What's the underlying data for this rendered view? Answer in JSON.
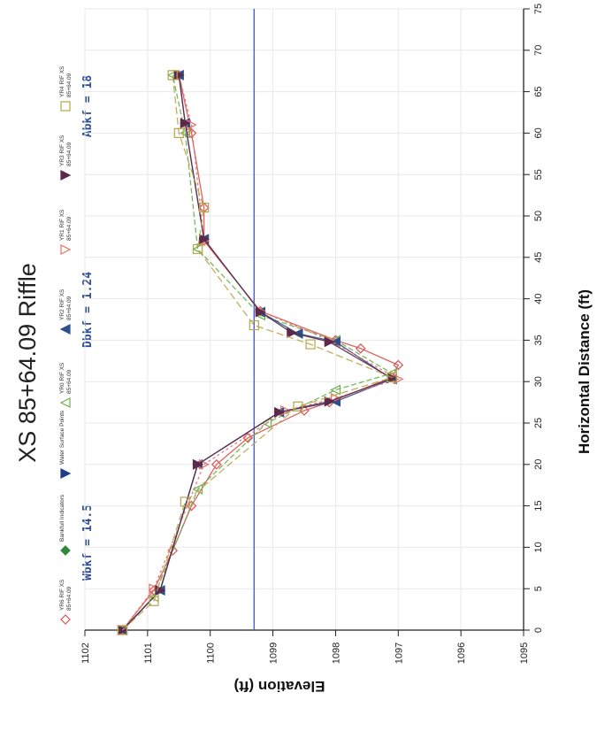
{
  "chart_data": {
    "type": "line",
    "title": "XS 85+64.09 Riffle",
    "xlabel": "Horizontal Distance (ft)",
    "ylabel": "Elevation (ft)",
    "xlim": [
      0,
      75
    ],
    "ylim": [
      1095,
      1102
    ],
    "x_ticks": [
      "0",
      "5",
      "10",
      "15",
      "20",
      "25",
      "30",
      "35",
      "40",
      "45",
      "50",
      "55",
      "60",
      "65",
      "70",
      "75"
    ],
    "y_ticks": [
      "1095",
      "1096",
      "1097",
      "1098",
      "1099",
      "1100",
      "1101",
      "1102"
    ],
    "orientation": "rotated-90-clockwise",
    "grid": true,
    "series": [
      {
        "name": "YR6 RIF XS 85+64.09",
        "color": "#d9534f",
        "marker": "diamond-open",
        "points": [
          [
            0,
            1101.4
          ],
          [
            4.8,
            1100.9
          ],
          [
            9.6,
            1100.6
          ],
          [
            15,
            1100.3
          ],
          [
            20,
            1099.9
          ],
          [
            23.2,
            1099.4
          ],
          [
            26.5,
            1098.5
          ],
          [
            27.5,
            1098.1
          ],
          [
            30.5,
            1097.1
          ],
          [
            32,
            1097.0
          ],
          [
            34,
            1097.6
          ],
          [
            35,
            1098.0
          ],
          [
            38.5,
            1099.2
          ],
          [
            47,
            1100.1
          ],
          [
            51,
            1100.1
          ],
          [
            60,
            1100.3
          ],
          [
            67,
            1100.5
          ]
        ]
      },
      {
        "name": "Bankfull Indicators",
        "color": "#2e8b3d",
        "marker": "diamond-filled",
        "points": []
      },
      {
        "name": "Water Surface Points",
        "color": "#1f3f8a",
        "marker": "triangle-down-filled",
        "points": [
          [
            0,
            1101.4
          ],
          [
            4.8,
            1100.8
          ],
          [
            20,
            1100.2
          ]
        ]
      },
      {
        "name": "YR0 RIF XS 85+64.09",
        "color": "#6ab04c",
        "marker": "triangle-open",
        "points": [
          [
            0,
            1101.4
          ],
          [
            4,
            1100.9
          ],
          [
            17,
            1100.2
          ],
          [
            25,
            1099.1
          ],
          [
            29,
            1098.0
          ],
          [
            31,
            1097.1
          ],
          [
            35,
            1098.0
          ],
          [
            38,
            1099.2
          ],
          [
            46,
            1100.2
          ],
          [
            60,
            1100.4
          ],
          [
            67,
            1100.6
          ]
        ]
      },
      {
        "name": "YR2 RIF XS 85+64.09",
        "color": "#2d4f8a",
        "marker": "triangle-filled",
        "points": [
          [
            0,
            1101.4
          ],
          [
            4.8,
            1100.8
          ],
          [
            20,
            1100.2
          ],
          [
            26.3,
            1098.9
          ],
          [
            27.6,
            1098.0
          ],
          [
            30.3,
            1097.1
          ],
          [
            34.8,
            1098.0
          ],
          [
            35.8,
            1098.6
          ],
          [
            38.4,
            1099.2
          ],
          [
            47.2,
            1100.1
          ],
          [
            61.2,
            1100.4
          ],
          [
            67,
            1100.5
          ]
        ]
      },
      {
        "name": "YR1 RIF XS 85+64.09",
        "color": "#e8706a",
        "marker": "triangle-down-open",
        "points": [
          [
            0,
            1101.4
          ],
          [
            5,
            1100.9
          ],
          [
            20,
            1100.1
          ],
          [
            26.5,
            1098.8
          ],
          [
            28,
            1098.0
          ],
          [
            30.3,
            1097.0
          ],
          [
            35,
            1098.1
          ],
          [
            38.5,
            1099.2
          ],
          [
            47,
            1100.1
          ],
          [
            61,
            1100.3
          ],
          [
            67,
            1100.5
          ]
        ]
      },
      {
        "name": "YR3 RIF XS 85+64.09",
        "color": "#5b2a4a",
        "marker": "triangle-down-filled",
        "points": [
          [
            0,
            1101.4
          ],
          [
            4.8,
            1100.8
          ],
          [
            20,
            1100.2
          ],
          [
            26.3,
            1098.9
          ],
          [
            27.6,
            1098.1
          ],
          [
            30.4,
            1097.1
          ],
          [
            34.8,
            1098.1
          ],
          [
            35.9,
            1098.7
          ],
          [
            38.4,
            1099.2
          ],
          [
            47.2,
            1100.1
          ],
          [
            61.2,
            1100.4
          ],
          [
            67,
            1100.5
          ]
        ]
      },
      {
        "name": "YR4 RIF XS 85+64.09",
        "color": "#b7a64a",
        "marker": "square-open",
        "points": [
          [
            0,
            1101.4
          ],
          [
            3.5,
            1100.9
          ],
          [
            15.5,
            1100.4
          ],
          [
            27,
            1098.6
          ],
          [
            30.5,
            1097.1
          ],
          [
            34.5,
            1098.4
          ],
          [
            36.8,
            1099.3
          ],
          [
            46,
            1100.2
          ],
          [
            51,
            1100.1
          ],
          [
            60,
            1100.5
          ],
          [
            67,
            1100.6
          ]
        ]
      }
    ],
    "reference_line": {
      "y": 1099.3,
      "color": "#4a62c8"
    },
    "annotations": [
      "Wbkf = 14.5",
      "Dbkf = 1.24",
      "Abkf = 18"
    ]
  }
}
